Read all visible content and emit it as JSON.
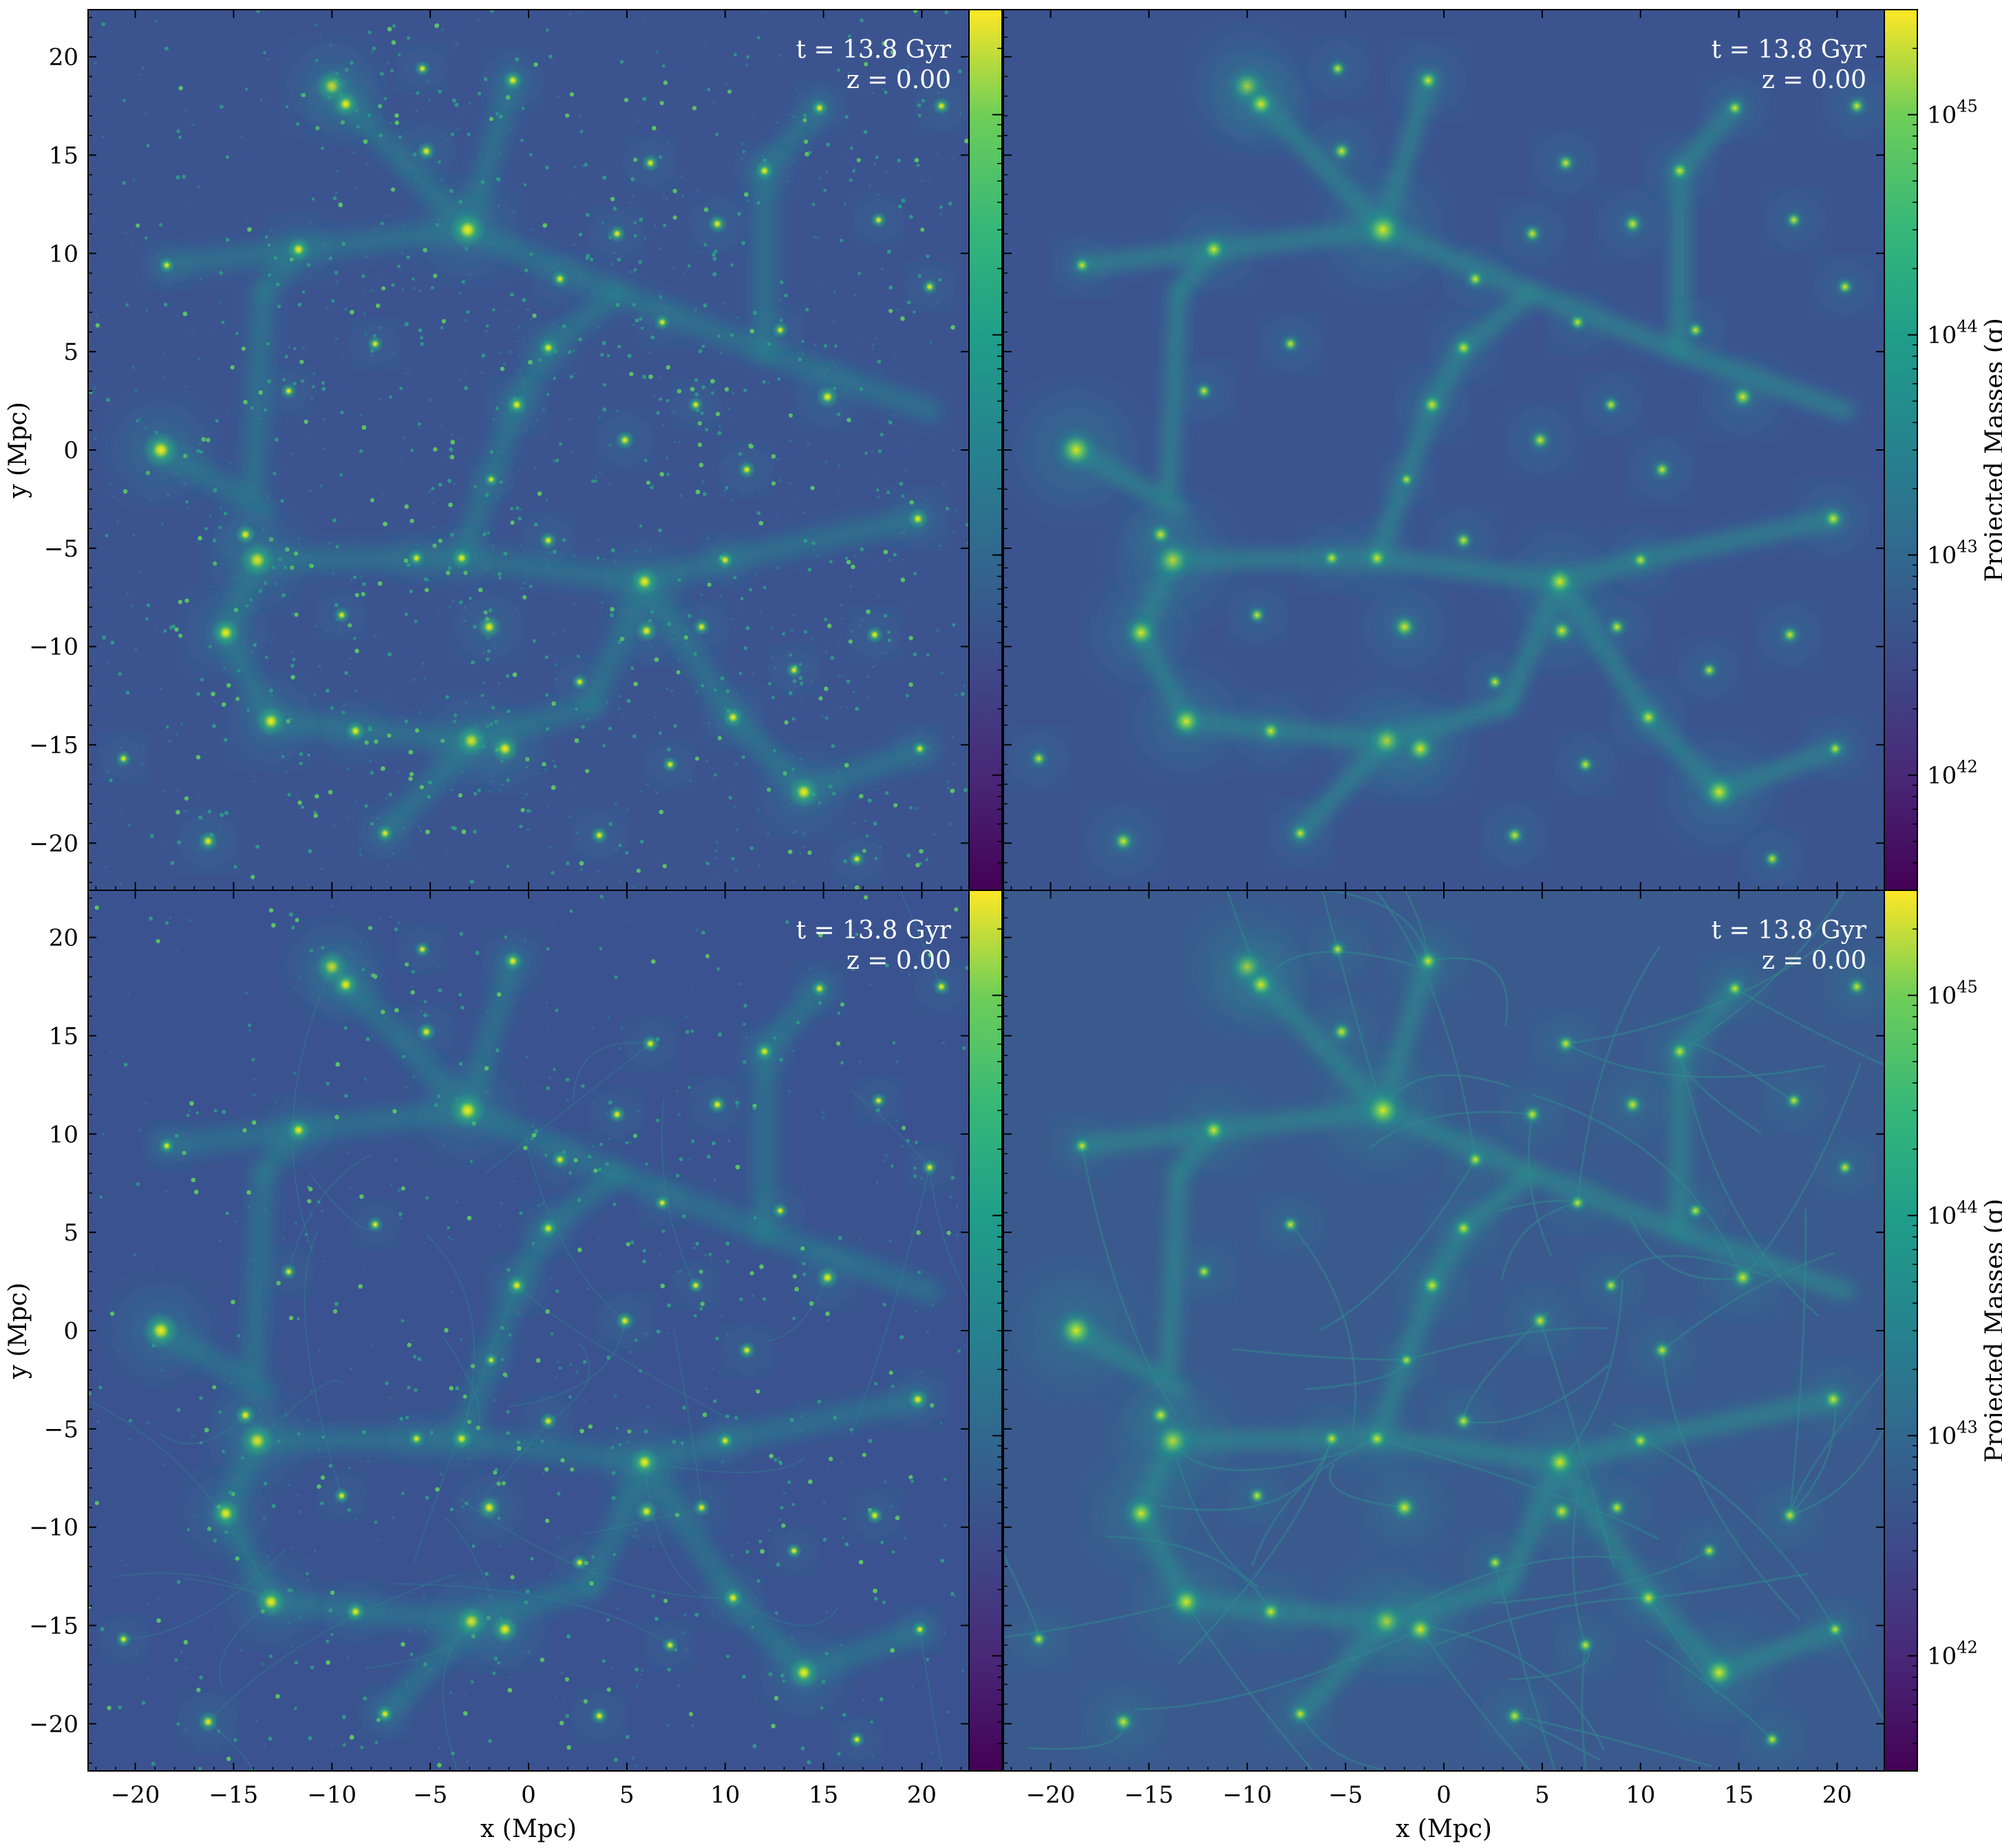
{
  "chart_data": [
    {
      "type": "heatmap",
      "panel": "top-left",
      "annotation": [
        "t = 13.8 Gyr",
        "z = 0.00"
      ],
      "ylabel": "y  (Mpc)",
      "xlabel": "",
      "xlim": [
        -22.4,
        22.4
      ],
      "ylim": [
        -22.4,
        22.4
      ],
      "xticks": [],
      "yticks": [
        -20,
        -15,
        -10,
        -5,
        0,
        5,
        10,
        15,
        20
      ],
      "colorbar": {
        "side": "left",
        "label": "",
        "scale": "log",
        "range": [
          3e+41,
          3e+45
        ],
        "ticks": [],
        "position": "right-of-panel"
      },
      "style": "particles"
    },
    {
      "type": "heatmap",
      "panel": "top-right",
      "annotation": [
        "t = 13.8 Gyr",
        "z = 0.00"
      ],
      "ylabel": "",
      "xlabel": "",
      "xlim": [
        -22.4,
        22.4
      ],
      "ylim": [
        -22.4,
        22.4
      ],
      "xticks": [],
      "yticks": [],
      "colorbar": {
        "side": "right",
        "label": "Projected Masses  (g)",
        "scale": "log",
        "range": [
          3e+41,
          3e+45
        ],
        "ticks": [
          42,
          43,
          44,
          45
        ],
        "position": "right-of-panel"
      },
      "style": "particles-smoothed"
    },
    {
      "type": "heatmap",
      "panel": "bottom-left",
      "annotation": [
        "t = 13.8 Gyr",
        "z = 0.00"
      ],
      "ylabel": "y  (Mpc)",
      "xlabel": "x  (Mpc)",
      "xlim": [
        -22.4,
        22.4
      ],
      "ylim": [
        -22.4,
        22.4
      ],
      "xticks": [
        -20,
        -15,
        -10,
        -5,
        0,
        5,
        10,
        15,
        20
      ],
      "yticks": [
        -20,
        -15,
        -10,
        -5,
        0,
        5,
        10,
        15,
        20
      ],
      "colorbar": {
        "side": "left",
        "label": "",
        "scale": "log",
        "range": [
          3e+41,
          3e+45
        ],
        "ticks": [],
        "position": "right-of-panel"
      },
      "style": "tessellation-mixed"
    },
    {
      "type": "heatmap",
      "panel": "bottom-right",
      "annotation": [
        "t = 13.8 Gyr",
        "z = 0.00"
      ],
      "ylabel": "",
      "xlabel": "x  (Mpc)",
      "xlim": [
        -22.4,
        22.4
      ],
      "ylim": [
        -22.4,
        22.4
      ],
      "xticks": [
        -20,
        -15,
        -10,
        -5,
        0,
        5,
        10,
        15,
        20
      ],
      "yticks": [],
      "colorbar": {
        "side": "right",
        "label": "Projected Masses  (g)",
        "scale": "log",
        "range": [
          3e+41,
          3e+45
        ],
        "ticks": [
          42,
          43,
          44,
          45
        ],
        "position": "right-of-panel"
      },
      "style": "tessellation-smooth"
    }
  ],
  "halos": [
    {
      "x": -18.7,
      "y": 0.0,
      "m": 1.0
    },
    {
      "x": -3.1,
      "y": 11.2,
      "m": 1.0
    },
    {
      "x": -13.8,
      "y": -5.6,
      "m": 0.95
    },
    {
      "x": -10.0,
      "y": 18.5,
      "m": 0.85
    },
    {
      "x": -2.9,
      "y": -14.8,
      "m": 0.85
    },
    {
      "x": -13.1,
      "y": -13.8,
      "m": 0.8
    },
    {
      "x": 14.0,
      "y": -17.4,
      "m": 0.8
    },
    {
      "x": 5.9,
      "y": -6.7,
      "m": 0.75
    },
    {
      "x": -15.4,
      "y": -9.3,
      "m": 0.75
    },
    {
      "x": -1.2,
      "y": -15.2,
      "m": 0.7
    },
    {
      "x": -9.3,
      "y": 17.6,
      "m": 0.65
    },
    {
      "x": -11.7,
      "y": 10.2,
      "m": 0.55
    },
    {
      "x": 15.2,
      "y": 2.7,
      "m": 0.5
    },
    {
      "x": -2.0,
      "y": -9.0,
      "m": 0.55
    },
    {
      "x": 6.0,
      "y": -9.2,
      "m": 0.5
    },
    {
      "x": 10.4,
      "y": -13.6,
      "m": 0.45
    },
    {
      "x": -0.6,
      "y": 2.3,
      "m": 0.45
    },
    {
      "x": 19.8,
      "y": -3.5,
      "m": 0.45
    },
    {
      "x": -14.4,
      "y": -4.3,
      "m": 0.45
    },
    {
      "x": -16.3,
      "y": -19.9,
      "m": 0.45
    },
    {
      "x": -8.8,
      "y": -14.3,
      "m": 0.45
    },
    {
      "x": 1.0,
      "y": 5.2,
      "m": 0.4
    },
    {
      "x": -0.8,
      "y": 18.8,
      "m": 0.45
    },
    {
      "x": -5.2,
      "y": 15.2,
      "m": 0.4
    },
    {
      "x": 9.6,
      "y": 11.5,
      "m": 0.4
    },
    {
      "x": 12.0,
      "y": 14.2,
      "m": 0.4
    },
    {
      "x": 4.9,
      "y": 0.5,
      "m": 0.4
    },
    {
      "x": 4.5,
      "y": 11.0,
      "m": 0.35
    },
    {
      "x": 6.2,
      "y": 14.6,
      "m": 0.35
    },
    {
      "x": 1.6,
      "y": 8.7,
      "m": 0.35
    },
    {
      "x": -3.4,
      "y": -5.5,
      "m": 0.45
    },
    {
      "x": 1.0,
      "y": -4.6,
      "m": 0.35
    },
    {
      "x": -5.7,
      "y": -5.5,
      "m": 0.35
    },
    {
      "x": 8.8,
      "y": -9.0,
      "m": 0.35
    },
    {
      "x": 17.6,
      "y": -9.4,
      "m": 0.35
    },
    {
      "x": 14.8,
      "y": 17.4,
      "m": 0.35
    },
    {
      "x": 21.0,
      "y": 17.5,
      "m": 0.35
    },
    {
      "x": 20.4,
      "y": 8.3,
      "m": 0.3
    },
    {
      "x": -5.4,
      "y": 19.4,
      "m": 0.3
    },
    {
      "x": 10.0,
      "y": -5.6,
      "m": 0.35
    },
    {
      "x": -7.8,
      "y": 5.4,
      "m": 0.3
    },
    {
      "x": -12.2,
      "y": 3.0,
      "m": 0.3
    },
    {
      "x": -18.4,
      "y": 9.4,
      "m": 0.3
    },
    {
      "x": 11.1,
      "y": -1.0,
      "m": 0.35
    },
    {
      "x": 8.5,
      "y": 2.3,
      "m": 0.3
    },
    {
      "x": -7.3,
      "y": -19.5,
      "m": 0.35
    },
    {
      "x": 3.6,
      "y": -19.6,
      "m": 0.35
    },
    {
      "x": 7.2,
      "y": -16.0,
      "m": 0.3
    },
    {
      "x": 19.9,
      "y": -15.2,
      "m": 0.3
    },
    {
      "x": -20.6,
      "y": -15.7,
      "m": 0.3
    },
    {
      "x": 16.7,
      "y": -20.8,
      "m": 0.3
    },
    {
      "x": 6.8,
      "y": 6.5,
      "m": 0.3
    },
    {
      "x": 12.8,
      "y": 6.1,
      "m": 0.3
    },
    {
      "x": -1.9,
      "y": -1.5,
      "m": 0.25
    },
    {
      "x": 17.8,
      "y": 11.7,
      "m": 0.3
    },
    {
      "x": 2.6,
      "y": -11.8,
      "m": 0.3
    },
    {
      "x": -9.5,
      "y": -8.4,
      "m": 0.3
    },
    {
      "x": 13.5,
      "y": -11.2,
      "m": 0.3
    }
  ],
  "filaments": [
    [
      -10.0,
      18.5,
      -3.1,
      11.2
    ],
    [
      -3.1,
      11.2,
      4.5,
      8.0
    ],
    [
      4.5,
      8.0,
      12.0,
      5.0
    ],
    [
      12.0,
      5.0,
      20.4,
      2.0
    ],
    [
      -18.7,
      0.0,
      -13.5,
      -3.0
    ],
    [
      -13.8,
      -5.6,
      -15.4,
      -9.3
    ],
    [
      -15.4,
      -9.3,
      -13.1,
      -13.8
    ],
    [
      -13.1,
      -13.8,
      -2.9,
      -14.8
    ],
    [
      -2.9,
      -14.8,
      3.2,
      -13.0
    ],
    [
      3.2,
      -13.0,
      5.9,
      -6.7
    ],
    [
      5.9,
      -6.7,
      10.4,
      -13.6
    ],
    [
      10.4,
      -13.6,
      14.0,
      -17.4
    ],
    [
      -13.8,
      -5.6,
      -3.4,
      -5.5
    ],
    [
      -3.4,
      -5.5,
      5.9,
      -6.7
    ],
    [
      -3.1,
      11.2,
      -11.7,
      10.2
    ],
    [
      -11.7,
      10.2,
      -18.4,
      9.4
    ],
    [
      -14.0,
      -2.0,
      -13.5,
      8.0
    ],
    [
      -13.5,
      8.0,
      -11.7,
      10.2
    ],
    [
      4.5,
      8.0,
      1.0,
      5.2
    ],
    [
      1.0,
      5.2,
      -0.6,
      2.3
    ],
    [
      -0.6,
      2.3,
      -3.4,
      -5.5
    ],
    [
      5.9,
      -6.7,
      10.0,
      -5.6
    ],
    [
      10.0,
      -5.6,
      19.8,
      -3.5
    ],
    [
      -2.9,
      -14.8,
      -7.3,
      -19.5
    ],
    [
      14.0,
      -17.4,
      20.0,
      -15.2
    ],
    [
      12.0,
      5.0,
      12.0,
      14.2
    ],
    [
      12.0,
      14.2,
      14.8,
      17.4
    ],
    [
      -3.1,
      11.2,
      -0.8,
      18.8
    ]
  ]
}
